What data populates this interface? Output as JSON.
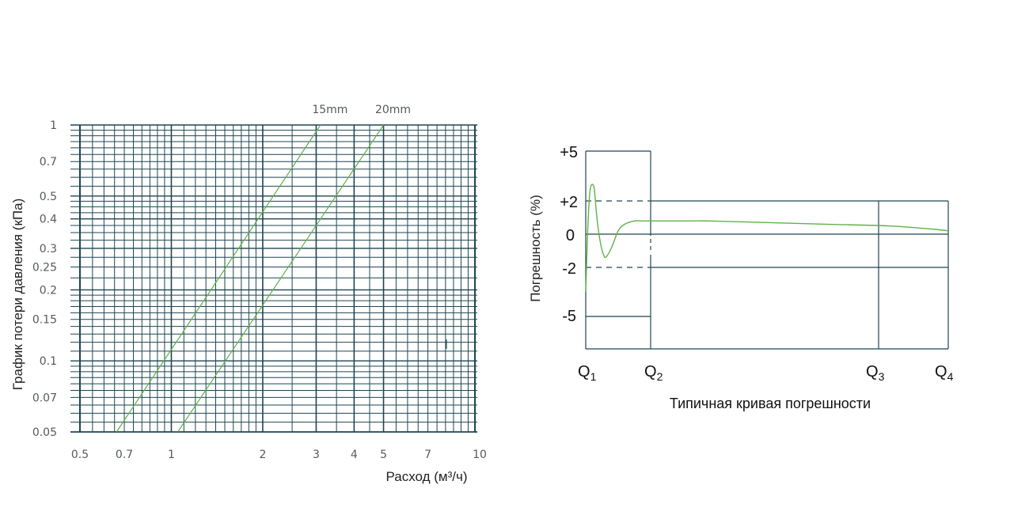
{
  "colors": {
    "grid": "#1f4552",
    "curve": "#5fb246",
    "text": "#555a5c",
    "dark": "#111111"
  },
  "chart_data": [
    {
      "type": "line",
      "xscale": "log",
      "yscale": "log",
      "grid": true,
      "xlim": [
        0.5,
        10
      ],
      "ylim": [
        0.05,
        1
      ],
      "xlabel": "Расход (м³/ч)",
      "ylabel": "График потери давления (кПа)",
      "x_ticks": [
        "0.5",
        "0.7",
        "1",
        "2",
        "3",
        "4",
        "5",
        "7",
        "10"
      ],
      "y_ticks": [
        "1",
        "0.7",
        "0.5",
        "0.4",
        "0.3",
        "0.25",
        "0.2",
        "0.15",
        "0.1",
        "0.07",
        "0.05"
      ],
      "series": [
        {
          "name": "15mm",
          "x": [
            0.66,
            3.1
          ],
          "y": [
            0.05,
            1
          ]
        },
        {
          "name": "20mm",
          "x": [
            1.05,
            5.0
          ],
          "y": [
            0.05,
            1
          ]
        }
      ]
    },
    {
      "type": "line",
      "caption": "Типичная кривая погрешности",
      "ylabel": "Погрешность (%)",
      "y_ticks": [
        "+5",
        "+2",
        "0",
        "-2",
        "-5"
      ],
      "x_ticks": [
        {
          "main": "Q",
          "sub": "1"
        },
        {
          "main": "Q",
          "sub": "2"
        },
        {
          "main": "Q",
          "sub": "3"
        },
        {
          "main": "Q",
          "sub": "4"
        }
      ],
      "series": [
        {
          "name": "",
          "x": [
            0,
            0.03,
            0.06,
            0.09,
            0.13,
            0.16,
            0.19,
            0.23,
            0.27,
            0.31,
            0.4,
            0.5,
            0.6,
            0.75,
            0.85,
            0.92,
            1.0,
            1.1,
            1.2,
            1.4,
            1.6,
            1.8,
            1.95,
            2.0
          ],
          "y": [
            -3.5,
            0.2,
            2.4,
            3.0,
            2.8,
            1.5,
            0.4,
            -0.6,
            -1.2,
            -1.4,
            -0.8,
            0.2,
            0.6,
            0.8,
            0.8,
            0.8,
            0.8,
            0.8,
            0.8,
            0.7,
            0.6,
            0.5,
            0.3,
            0.2
          ]
        }
      ]
    }
  ]
}
